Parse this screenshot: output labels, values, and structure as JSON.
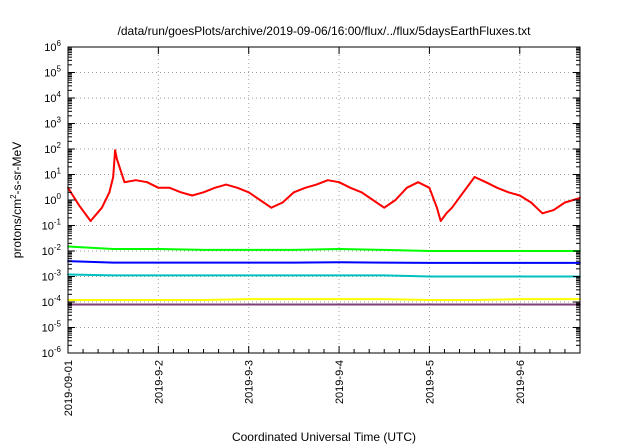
{
  "chart_data": {
    "type": "line",
    "title": "/data/run/goesPlots/archive/2019-09-06/16:00/flux/../flux/5daysEarthFluxes.txt",
    "xlabel": "Coordinated Universal Time (UTC)",
    "ylabel": "protons/cm2-s-sr-MeV",
    "xlim": [
      "2019-09-01 00:00",
      "2019-09-06 16:00"
    ],
    "ylim": [
      1e-06,
      1000000.0
    ],
    "yscale": "log",
    "grid": true,
    "x_ticks": [
      "2019-09-01",
      "2019-9-2",
      "2019-9-3",
      "2019-9-4",
      "2019-9-5",
      "2019-9-6"
    ],
    "y_ticks": [
      {
        "base": "10",
        "exp": "-6"
      },
      {
        "base": "10",
        "exp": "-5"
      },
      {
        "base": "10",
        "exp": "-4"
      },
      {
        "base": "10",
        "exp": "-3"
      },
      {
        "base": "10",
        "exp": "-2"
      },
      {
        "base": "10",
        "exp": "-1"
      },
      {
        "base": "10",
        "exp": "0"
      },
      {
        "base": "10",
        "exp": "1"
      },
      {
        "base": "10",
        "exp": "2"
      },
      {
        "base": "10",
        "exp": "3"
      },
      {
        "base": "10",
        "exp": "4"
      },
      {
        "base": "10",
        "exp": "5"
      },
      {
        "base": "10",
        "exp": "6"
      }
    ],
    "ylabel_parts": {
      "pre": "protons/cm",
      "sup": "2",
      "post": "-s-sr-MeV"
    },
    "series": [
      {
        "color": "#ff0000",
        "x": [
          "2019-09-01 00:00",
          "2019-09-01 03:00",
          "2019-09-01 06:00",
          "2019-09-01 09:00",
          "2019-09-01 11:00",
          "2019-09-01 12:00",
          "2019-09-01 12:30",
          "2019-09-01 13:00",
          "2019-09-01 15:00",
          "2019-09-01 18:00",
          "2019-09-01 21:00",
          "2019-09-02 00:00",
          "2019-09-02 03:00",
          "2019-09-02 06:00",
          "2019-09-02 09:00",
          "2019-09-02 12:00",
          "2019-09-02 15:00",
          "2019-09-02 18:00",
          "2019-09-02 21:00",
          "2019-09-03 00:00",
          "2019-09-03 03:00",
          "2019-09-03 06:00",
          "2019-09-03 09:00",
          "2019-09-03 12:00",
          "2019-09-03 15:00",
          "2019-09-03 18:00",
          "2019-09-03 21:00",
          "2019-09-04 00:00",
          "2019-09-04 03:00",
          "2019-09-04 06:00",
          "2019-09-04 09:00",
          "2019-09-04 12:00",
          "2019-09-04 15:00",
          "2019-09-04 18:00",
          "2019-09-04 21:00",
          "2019-09-05 00:00",
          "2019-09-05 02:00",
          "2019-09-05 03:00",
          "2019-09-05 04:30",
          "2019-09-05 06:00",
          "2019-09-05 09:00",
          "2019-09-05 12:00",
          "2019-09-05 15:00",
          "2019-09-05 18:00",
          "2019-09-05 21:00",
          "2019-09-06 00:00",
          "2019-09-06 03:00",
          "2019-09-06 06:00",
          "2019-09-06 09:00",
          "2019-09-06 12:00",
          "2019-09-06 16:00"
        ],
        "values": [
          3,
          0.6,
          0.15,
          0.5,
          2,
          8,
          90,
          40,
          5,
          6,
          5,
          3,
          3,
          2,
          1.5,
          2,
          3,
          4,
          3,
          2,
          1,
          0.5,
          0.8,
          2,
          3,
          4,
          6,
          5,
          3,
          2,
          1,
          0.5,
          1,
          3,
          5,
          3,
          0.5,
          0.15,
          0.3,
          0.5,
          2,
          8,
          5,
          3,
          2,
          1.5,
          0.8,
          0.3,
          0.4,
          0.8,
          1.2
        ]
      },
      {
        "color": "#00ff00",
        "x": [
          "2019-09-01 00:00",
          "2019-09-01 12:00",
          "2019-09-02 00:00",
          "2019-09-02 12:00",
          "2019-09-03 00:00",
          "2019-09-03 12:00",
          "2019-09-04 00:00",
          "2019-09-04 12:00",
          "2019-09-05 00:00",
          "2019-09-05 12:00",
          "2019-09-06 00:00",
          "2019-09-06 12:00",
          "2019-09-06 16:00"
        ],
        "values": [
          0.015,
          0.012,
          0.012,
          0.011,
          0.011,
          0.011,
          0.012,
          0.011,
          0.01,
          0.01,
          0.01,
          0.01,
          0.01
        ]
      },
      {
        "color": "#0000ff",
        "x": [
          "2019-09-01 00:00",
          "2019-09-01 12:00",
          "2019-09-02 00:00",
          "2019-09-02 12:00",
          "2019-09-03 00:00",
          "2019-09-03 12:00",
          "2019-09-04 00:00",
          "2019-09-04 12:00",
          "2019-09-05 00:00",
          "2019-09-05 12:00",
          "2019-09-06 00:00",
          "2019-09-06 12:00",
          "2019-09-06 16:00"
        ],
        "values": [
          0.004,
          0.0035,
          0.0035,
          0.0035,
          0.0035,
          0.0035,
          0.0036,
          0.0035,
          0.0034,
          0.0034,
          0.0034,
          0.0034,
          0.0034
        ]
      },
      {
        "color": "#00c0c0",
        "x": [
          "2019-09-01 00:00",
          "2019-09-01 12:00",
          "2019-09-02 00:00",
          "2019-09-02 12:00",
          "2019-09-03 00:00",
          "2019-09-03 12:00",
          "2019-09-04 00:00",
          "2019-09-04 12:00",
          "2019-09-05 00:00",
          "2019-09-05 12:00",
          "2019-09-06 00:00",
          "2019-09-06 12:00",
          "2019-09-06 16:00"
        ],
        "values": [
          0.0012,
          0.0011,
          0.0011,
          0.0011,
          0.0011,
          0.0011,
          0.0011,
          0.0011,
          0.001,
          0.001,
          0.001,
          0.001,
          0.001
        ]
      },
      {
        "color": "#ffff00",
        "x": [
          "2019-09-01 00:00",
          "2019-09-01 12:00",
          "2019-09-02 00:00",
          "2019-09-02 12:00",
          "2019-09-03 00:00",
          "2019-09-03 12:00",
          "2019-09-04 00:00",
          "2019-09-04 12:00",
          "2019-09-05 00:00",
          "2019-09-05 12:00",
          "2019-09-06 00:00",
          "2019-09-06 12:00",
          "2019-09-06 16:00"
        ],
        "values": [
          0.00012,
          0.00012,
          0.00012,
          0.00012,
          0.00013,
          0.00013,
          0.00013,
          0.00013,
          0.00012,
          0.00012,
          0.00013,
          0.00013,
          0.00013
        ]
      },
      {
        "color": "#803c78",
        "x": [
          "2019-09-01 00:00",
          "2019-09-01 12:00",
          "2019-09-02 00:00",
          "2019-09-02 12:00",
          "2019-09-03 00:00",
          "2019-09-03 12:00",
          "2019-09-04 00:00",
          "2019-09-04 12:00",
          "2019-09-05 00:00",
          "2019-09-05 12:00",
          "2019-09-06 00:00",
          "2019-09-06 12:00",
          "2019-09-06 16:00"
        ],
        "values": [
          8e-05,
          8e-05,
          8e-05,
          8e-05,
          8e-05,
          8e-05,
          8e-05,
          8e-05,
          8e-05,
          8e-05,
          8e-05,
          8e-05,
          8e-05
        ]
      }
    ]
  }
}
